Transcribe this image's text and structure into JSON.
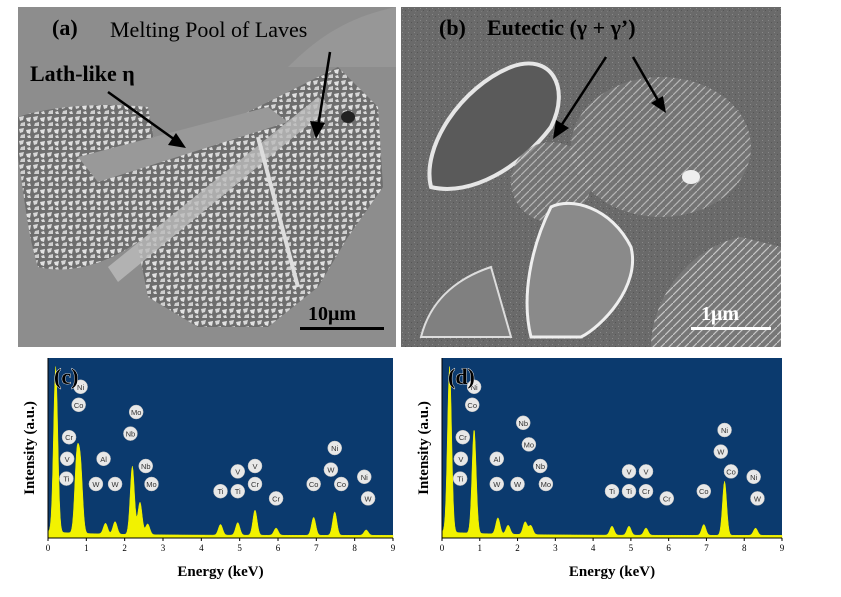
{
  "panel_a": {
    "label": "(a)",
    "annotation_melting": "Melting Pool of Laves",
    "annotation_lath": "Lath-like η",
    "scale_bar": "10μm"
  },
  "panel_b": {
    "label": "(b)",
    "annotation_eutectic": "Eutectic (γ + γ’)",
    "scale_bar": "1μm"
  },
  "chart_data": [
    {
      "type": "line",
      "panel_label": "(c)",
      "xlabel": "Energy (keV)",
      "ylabel": "Intensity (a.u.)",
      "xlim": [
        0,
        9
      ],
      "x_ticks": [
        "0",
        "1",
        "2",
        "3",
        "4",
        "5",
        "6",
        "7",
        "8",
        "9"
      ],
      "background_color": "#0b3a6e",
      "spectrum_color": "#f2f200",
      "peaks": [
        {
          "x": 0.2,
          "h": 0.92
        },
        {
          "x": 0.75,
          "h": 0.4
        },
        {
          "x": 0.85,
          "h": 0.35
        },
        {
          "x": 1.5,
          "h": 0.06
        },
        {
          "x": 1.75,
          "h": 0.07
        },
        {
          "x": 2.2,
          "h": 0.38
        },
        {
          "x": 2.4,
          "h": 0.18
        },
        {
          "x": 2.6,
          "h": 0.06
        },
        {
          "x": 4.5,
          "h": 0.06
        },
        {
          "x": 4.95,
          "h": 0.07
        },
        {
          "x": 5.4,
          "h": 0.14
        },
        {
          "x": 5.95,
          "h": 0.04
        },
        {
          "x": 6.93,
          "h": 0.1
        },
        {
          "x": 7.48,
          "h": 0.13
        },
        {
          "x": 8.3,
          "h": 0.03
        }
      ],
      "element_labels": [
        {
          "t": "Ni",
          "x": 0.85,
          "h": 0.84
        },
        {
          "t": "Co",
          "x": 0.8,
          "h": 0.74
        },
        {
          "t": "Cr",
          "x": 0.55,
          "h": 0.56
        },
        {
          "t": "V",
          "x": 0.5,
          "h": 0.44
        },
        {
          "t": "Ti",
          "x": 0.48,
          "h": 0.33
        },
        {
          "t": "Al",
          "x": 1.45,
          "h": 0.44
        },
        {
          "t": "W",
          "x": 1.25,
          "h": 0.3
        },
        {
          "t": "W",
          "x": 1.75,
          "h": 0.3
        },
        {
          "t": "Mo",
          "x": 2.3,
          "h": 0.7
        },
        {
          "t": "Nb",
          "x": 2.15,
          "h": 0.58
        },
        {
          "t": "Nb",
          "x": 2.55,
          "h": 0.4
        },
        {
          "t": "Mo",
          "x": 2.7,
          "h": 0.3
        },
        {
          "t": "Ti",
          "x": 4.5,
          "h": 0.26
        },
        {
          "t": "V",
          "x": 4.95,
          "h": 0.37
        },
        {
          "t": "Ti",
          "x": 4.95,
          "h": 0.26
        },
        {
          "t": "V",
          "x": 5.4,
          "h": 0.4
        },
        {
          "t": "Cr",
          "x": 5.4,
          "h": 0.3
        },
        {
          "t": "Cr",
          "x": 5.95,
          "h": 0.22
        },
        {
          "t": "Co",
          "x": 6.93,
          "h": 0.3
        },
        {
          "t": "Ni",
          "x": 7.48,
          "h": 0.5
        },
        {
          "t": "W",
          "x": 7.38,
          "h": 0.38
        },
        {
          "t": "Co",
          "x": 7.65,
          "h": 0.3
        },
        {
          "t": "Ni",
          "x": 8.25,
          "h": 0.34
        },
        {
          "t": "W",
          "x": 8.35,
          "h": 0.22
        }
      ]
    },
    {
      "type": "line",
      "panel_label": "(d)",
      "xlabel": "Energy (keV)",
      "ylabel": "Intensity (a.u.)",
      "xlim": [
        0,
        9
      ],
      "x_ticks": [
        "0",
        "1",
        "2",
        "3",
        "4",
        "5",
        "6",
        "7",
        "8",
        "9"
      ],
      "background_color": "#0b3a6e",
      "spectrum_color": "#f2f200",
      "peaks": [
        {
          "x": 0.2,
          "h": 0.92
        },
        {
          "x": 0.85,
          "h": 0.58
        },
        {
          "x": 1.48,
          "h": 0.09
        },
        {
          "x": 1.75,
          "h": 0.05
        },
        {
          "x": 2.2,
          "h": 0.07
        },
        {
          "x": 2.35,
          "h": 0.05
        },
        {
          "x": 4.5,
          "h": 0.05
        },
        {
          "x": 4.95,
          "h": 0.05
        },
        {
          "x": 5.4,
          "h": 0.04
        },
        {
          "x": 6.93,
          "h": 0.06
        },
        {
          "x": 7.48,
          "h": 0.3
        },
        {
          "x": 8.3,
          "h": 0.04
        }
      ],
      "element_labels": [
        {
          "t": "Ni",
          "x": 0.85,
          "h": 0.84
        },
        {
          "t": "Co",
          "x": 0.8,
          "h": 0.74
        },
        {
          "t": "Cr",
          "x": 0.55,
          "h": 0.56
        },
        {
          "t": "V",
          "x": 0.5,
          "h": 0.44
        },
        {
          "t": "Ti",
          "x": 0.48,
          "h": 0.33
        },
        {
          "t": "Al",
          "x": 1.45,
          "h": 0.44
        },
        {
          "t": "W",
          "x": 1.45,
          "h": 0.3
        },
        {
          "t": "W",
          "x": 2.0,
          "h": 0.3
        },
        {
          "t": "Nb",
          "x": 2.15,
          "h": 0.64
        },
        {
          "t": "Mo",
          "x": 2.3,
          "h": 0.52
        },
        {
          "t": "Nb",
          "x": 2.6,
          "h": 0.4
        },
        {
          "t": "Mo",
          "x": 2.75,
          "h": 0.3
        },
        {
          "t": "Ti",
          "x": 4.5,
          "h": 0.26
        },
        {
          "t": "V",
          "x": 4.95,
          "h": 0.37
        },
        {
          "t": "Ti",
          "x": 4.95,
          "h": 0.26
        },
        {
          "t": "V",
          "x": 5.4,
          "h": 0.37
        },
        {
          "t": "Cr",
          "x": 5.4,
          "h": 0.26
        },
        {
          "t": "Cr",
          "x": 5.95,
          "h": 0.22
        },
        {
          "t": "Co",
          "x": 6.93,
          "h": 0.26
        },
        {
          "t": "Ni",
          "x": 7.48,
          "h": 0.6
        },
        {
          "t": "W",
          "x": 7.38,
          "h": 0.48
        },
        {
          "t": "Co",
          "x": 7.65,
          "h": 0.37
        },
        {
          "t": "Ni",
          "x": 8.25,
          "h": 0.34
        },
        {
          "t": "W",
          "x": 8.35,
          "h": 0.22
        }
      ]
    }
  ]
}
